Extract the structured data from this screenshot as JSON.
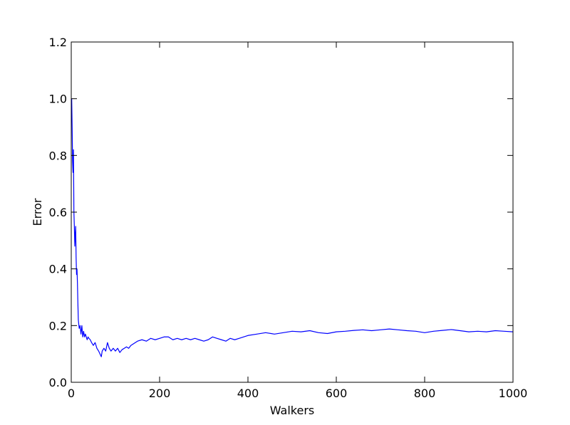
{
  "chart_data": {
    "type": "line",
    "title": "",
    "xlabel": "Walkers",
    "ylabel": "Error",
    "xlim": [
      0,
      1000
    ],
    "ylim": [
      0.0,
      1.2
    ],
    "xticks": [
      0,
      200,
      400,
      600,
      800,
      1000
    ],
    "xtick_labels": [
      "0",
      "200",
      "400",
      "600",
      "800",
      "1000"
    ],
    "yticks": [
      0.0,
      0.2,
      0.4,
      0.6,
      0.8,
      1.0,
      1.2
    ],
    "ytick_labels": [
      "0.0",
      "0.2",
      "0.4",
      "0.6",
      "0.8",
      "1.0",
      "1.2"
    ],
    "grid": false,
    "legend": "none",
    "series": [
      {
        "color": "#0000ff",
        "x": [
          1,
          2,
          3,
          4,
          5,
          6,
          7,
          8,
          9,
          10,
          11,
          12,
          13,
          14,
          15,
          16,
          18,
          20,
          22,
          24,
          26,
          28,
          30,
          32,
          34,
          36,
          38,
          40,
          43,
          46,
          50,
          54,
          58,
          62,
          65,
          68,
          70,
          74,
          78,
          82,
          86,
          90,
          95,
          100,
          105,
          110,
          115,
          120,
          125,
          130,
          135,
          140,
          145,
          150,
          160,
          170,
          180,
          190,
          200,
          210,
          220,
          230,
          240,
          250,
          260,
          270,
          280,
          290,
          300,
          310,
          320,
          330,
          340,
          350,
          360,
          370,
          380,
          390,
          400,
          420,
          440,
          460,
          480,
          500,
          520,
          540,
          560,
          580,
          600,
          620,
          640,
          660,
          680,
          700,
          720,
          740,
          760,
          780,
          800,
          820,
          840,
          860,
          880,
          900,
          920,
          940,
          960,
          980,
          1000
        ],
        "y": [
          1.0,
          0.9,
          0.78,
          0.74,
          0.82,
          0.6,
          0.55,
          0.48,
          0.52,
          0.55,
          0.44,
          0.38,
          0.4,
          0.35,
          0.28,
          0.22,
          0.19,
          0.2,
          0.17,
          0.2,
          0.16,
          0.18,
          0.16,
          0.17,
          0.16,
          0.15,
          0.16,
          0.155,
          0.15,
          0.14,
          0.13,
          0.14,
          0.12,
          0.11,
          0.1,
          0.09,
          0.11,
          0.12,
          0.11,
          0.14,
          0.12,
          0.11,
          0.12,
          0.11,
          0.12,
          0.105,
          0.115,
          0.12,
          0.125,
          0.12,
          0.13,
          0.135,
          0.14,
          0.145,
          0.15,
          0.145,
          0.155,
          0.15,
          0.155,
          0.16,
          0.16,
          0.15,
          0.155,
          0.15,
          0.155,
          0.15,
          0.155,
          0.15,
          0.145,
          0.15,
          0.16,
          0.155,
          0.15,
          0.145,
          0.155,
          0.15,
          0.155,
          0.16,
          0.165,
          0.17,
          0.175,
          0.17,
          0.175,
          0.18,
          0.178,
          0.182,
          0.175,
          0.172,
          0.178,
          0.18,
          0.183,
          0.185,
          0.182,
          0.185,
          0.188,
          0.185,
          0.182,
          0.18,
          0.175,
          0.18,
          0.183,
          0.186,
          0.182,
          0.178,
          0.18,
          0.178,
          0.182,
          0.18,
          0.178
        ]
      }
    ]
  }
}
